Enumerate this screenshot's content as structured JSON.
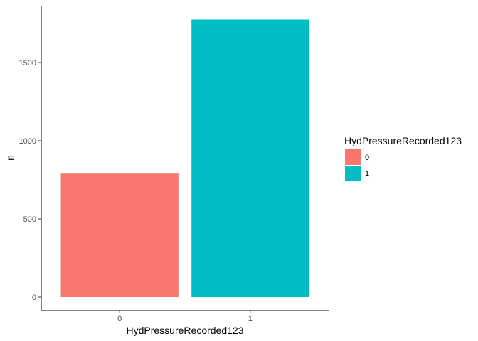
{
  "chart_data": {
    "type": "bar",
    "categories": [
      "0",
      "1"
    ],
    "values": [
      790,
      1775
    ],
    "colors": [
      "#F8766D",
      "#00BFC4"
    ],
    "xlabel": "HydPressureRecorded123",
    "ylabel": "n",
    "yticks": [
      0,
      500,
      1000,
      1500
    ],
    "ylim": [
      0,
      1775
    ],
    "grid": false,
    "legend": {
      "title": "HydPressureRecorded123",
      "position": "right",
      "entries": [
        "0",
        "1"
      ]
    }
  }
}
